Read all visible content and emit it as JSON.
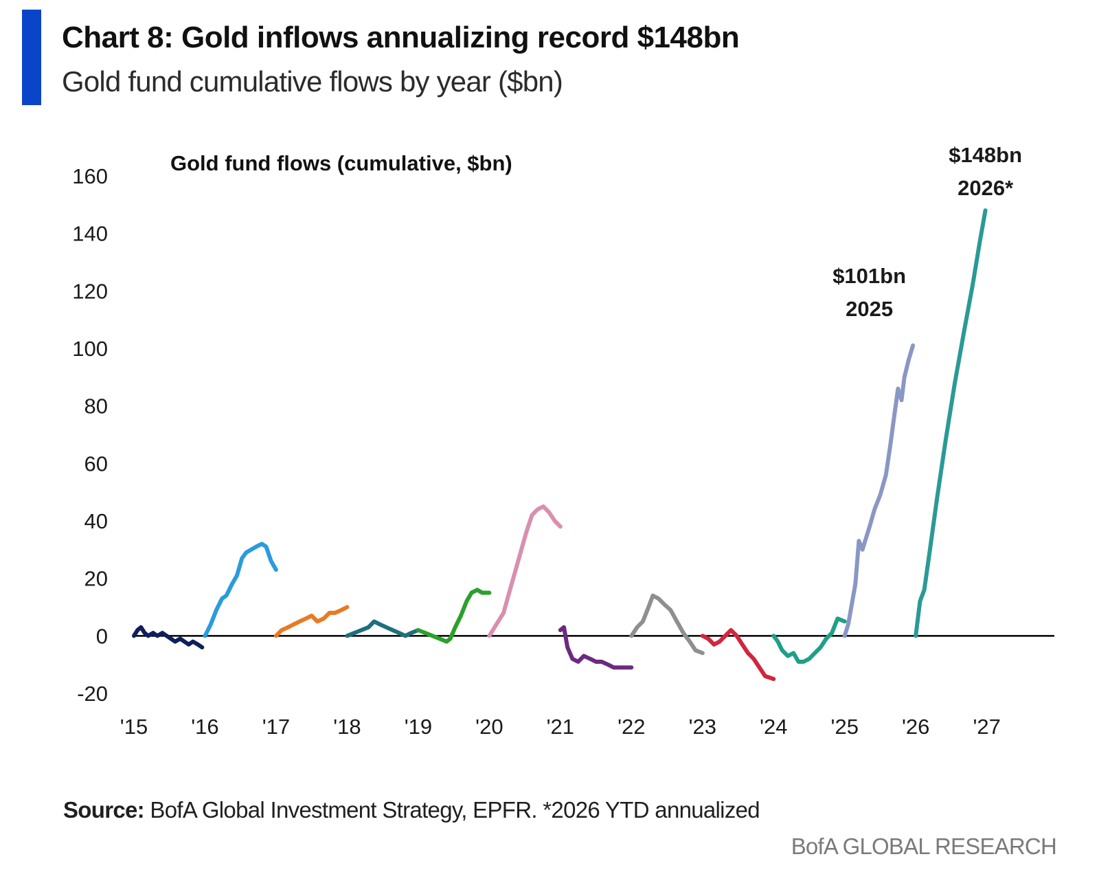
{
  "header": {
    "title": "Chart 8: Gold inflows annualizing record $148bn",
    "subtitle": "Gold fund cumulative flows by year ($bn)"
  },
  "footer": {
    "source_label": "Source:",
    "source_text": " BofA Global Investment Strategy, EPFR. *2026 YTD annualized",
    "brand": "BofA GLOBAL RESEARCH"
  },
  "colors": {
    "accent": "#0a45c9"
  },
  "chart_data": {
    "type": "line",
    "title": "Gold fund flows (cumulative, $bn)",
    "xlabel": "",
    "ylabel": "",
    "xlim": [
      2015,
      2027.95
    ],
    "ylim": [
      -20,
      160
    ],
    "y_ticks": [
      -20,
      0,
      20,
      40,
      60,
      80,
      100,
      120,
      140,
      160
    ],
    "x_ticks": [
      2015,
      2016,
      2017,
      2018,
      2019,
      2020,
      2021,
      2022,
      2023,
      2024,
      2025,
      2026,
      2027
    ],
    "x_tick_labels": [
      "'15",
      "'16",
      "'17",
      "'18",
      "'19",
      "'20",
      "'21",
      "'22",
      "'23",
      "'24",
      "'25",
      "'26",
      "'27"
    ],
    "grid": false,
    "legend": "none",
    "series": [
      {
        "color": "#0f1f5c",
        "x": [
          2015.0,
          2015.05,
          2015.1,
          2015.15,
          2015.2,
          2015.27,
          2015.33,
          2015.4,
          2015.46,
          2015.52,
          2015.58,
          2015.65,
          2015.71,
          2015.77,
          2015.83,
          2015.9,
          2015.96
        ],
        "y": [
          0,
          2,
          3,
          1,
          0,
          1,
          0,
          1,
          0,
          -1,
          -2,
          -1,
          -2,
          -3,
          -2,
          -3,
          -4
        ]
      },
      {
        "color": "#2a9bdc",
        "x": [
          2016.0,
          2016.08,
          2016.16,
          2016.24,
          2016.3,
          2016.38,
          2016.45,
          2016.52,
          2016.58,
          2016.65,
          2016.72,
          2016.8,
          2016.86,
          2016.93,
          2017.0
        ],
        "y": [
          0,
          4,
          9,
          13,
          14,
          18,
          21,
          27,
          29,
          30,
          31,
          32,
          31,
          26,
          23
        ]
      },
      {
        "color": "#e87a24",
        "x": [
          2017.0,
          2017.08,
          2017.17,
          2017.25,
          2017.33,
          2017.42,
          2017.5,
          2017.58,
          2017.67,
          2017.75,
          2017.83,
          2017.92,
          2018.0
        ],
        "y": [
          0,
          2,
          3,
          4,
          5,
          6,
          7,
          5,
          6,
          8,
          8,
          9,
          10
        ]
      },
      {
        "color": "#1f6f7e",
        "x": [
          2018.0,
          2018.1,
          2018.2,
          2018.3,
          2018.38,
          2018.46,
          2018.55,
          2018.64,
          2018.73,
          2018.82,
          2018.9,
          2019.0
        ],
        "y": [
          0,
          1,
          2,
          3,
          5,
          4,
          3,
          2,
          1,
          0,
          1,
          2
        ]
      },
      {
        "color": "#2ca02c",
        "x": [
          2019.0,
          2019.1,
          2019.2,
          2019.3,
          2019.4,
          2019.45,
          2019.52,
          2019.6,
          2019.68,
          2019.75,
          2019.83,
          2019.9,
          2020.0
        ],
        "y": [
          2,
          1,
          0,
          -1,
          -2,
          -1,
          3,
          7,
          12,
          15,
          16,
          15,
          15
        ]
      },
      {
        "color": "#d98fb0",
        "x": [
          2020.0,
          2020.1,
          2020.2,
          2020.28,
          2020.36,
          2020.44,
          2020.52,
          2020.6,
          2020.68,
          2020.76,
          2020.84,
          2020.92,
          2021.0
        ],
        "y": [
          0,
          4,
          8,
          15,
          22,
          29,
          36,
          42,
          44,
          45,
          43,
          40,
          38
        ]
      },
      {
        "color": "#6b2a80",
        "x": [
          2021.0,
          2021.05,
          2021.1,
          2021.17,
          2021.25,
          2021.33,
          2021.42,
          2021.5,
          2021.58,
          2021.67,
          2021.75,
          2021.83,
          2021.92,
          2022.0
        ],
        "y": [
          2,
          3,
          -4,
          -8,
          -9,
          -7,
          -8,
          -9,
          -9,
          -10,
          -11,
          -11,
          -11,
          -11
        ]
      },
      {
        "color": "#8f8f8f",
        "x": [
          2022.0,
          2022.08,
          2022.16,
          2022.24,
          2022.3,
          2022.38,
          2022.46,
          2022.55,
          2022.64,
          2022.73,
          2022.82,
          2022.9,
          2023.0
        ],
        "y": [
          0,
          3,
          5,
          10,
          14,
          13,
          11,
          9,
          5,
          1,
          -2,
          -5,
          -6
        ]
      },
      {
        "color": "#d0263e",
        "x": [
          2023.0,
          2023.08,
          2023.16,
          2023.24,
          2023.32,
          2023.4,
          2023.48,
          2023.56,
          2023.64,
          2023.72,
          2023.8,
          2023.88,
          2024.0
        ],
        "y": [
          0,
          -1,
          -3,
          -2,
          0,
          2,
          0,
          -3,
          -6,
          -8,
          -11,
          -14,
          -15
        ]
      },
      {
        "color": "#1fa087",
        "x": [
          2024.0,
          2024.06,
          2024.12,
          2024.2,
          2024.28,
          2024.35,
          2024.42,
          2024.5,
          2024.58,
          2024.66,
          2024.74,
          2024.82,
          2024.9,
          2025.0
        ],
        "y": [
          0,
          -2,
          -5,
          -7,
          -6,
          -9,
          -9,
          -8,
          -6,
          -4,
          -1,
          1,
          6,
          5
        ]
      },
      {
        "color": "#8a97c4",
        "x": [
          2025.0,
          2025.05,
          2025.1,
          2025.15,
          2025.2,
          2025.25,
          2025.3,
          2025.35,
          2025.42,
          2025.5,
          2025.58,
          2025.64,
          2025.7,
          2025.75,
          2025.8,
          2025.84,
          2025.9,
          2025.96
        ],
        "y": [
          0,
          4,
          11,
          18,
          33,
          30,
          34,
          38,
          44,
          49,
          56,
          66,
          77,
          86,
          82,
          90,
          96,
          101
        ]
      },
      {
        "color": "#2a9a96",
        "x": [
          2026.0,
          2026.06,
          2026.12,
          2026.2,
          2026.3,
          2026.42,
          2026.55,
          2026.68,
          2026.8,
          2026.9,
          2026.98
        ],
        "y": [
          0,
          12,
          16,
          30,
          48,
          68,
          88,
          106,
          122,
          137,
          148
        ]
      }
    ],
    "annotations": [
      {
        "line1": "$101bn",
        "line2": "2025",
        "x": 2025.25,
        "y": 101
      },
      {
        "line1": "$148bn",
        "line2": "2026*",
        "x": 2026.98,
        "y": 148
      }
    ]
  }
}
